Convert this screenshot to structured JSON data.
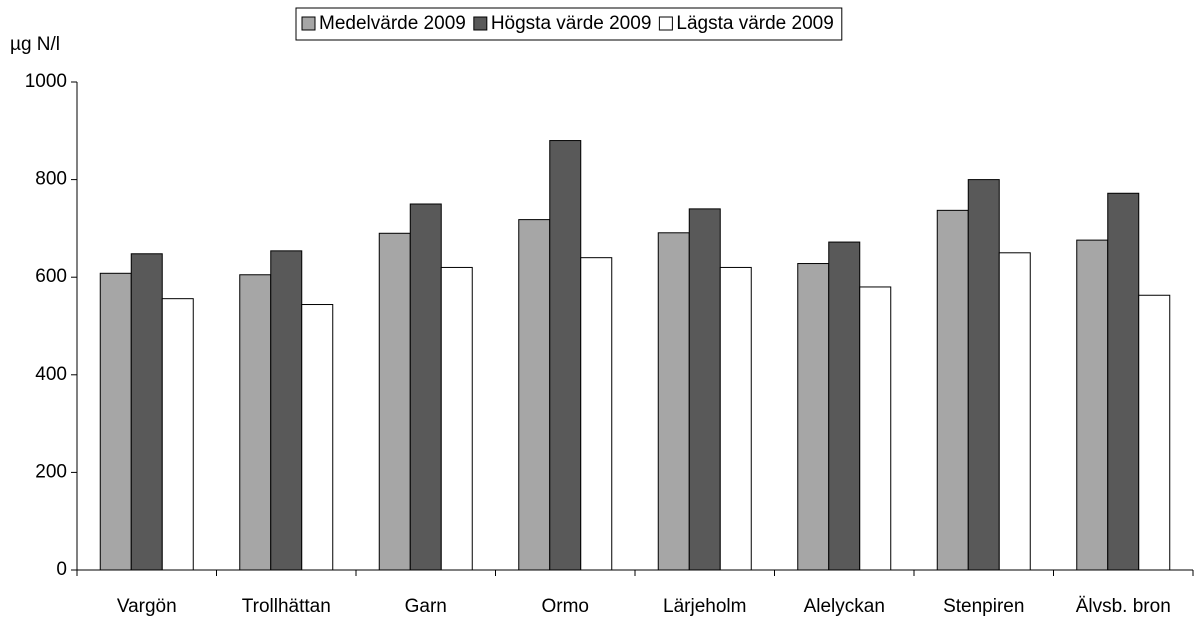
{
  "chart_data": {
    "type": "bar",
    "y_label": "µg N/l",
    "categories": [
      "Vargön",
      "Trollhättan",
      "Garn",
      "Ormo",
      "Lärjeholm",
      "Alelyckan",
      "Stenpiren",
      "Älvsb. bron"
    ],
    "series": [
      {
        "name": "Medelvärde 2009",
        "color": "#a6a6a6",
        "values": [
          608,
          605,
          690,
          718,
          691,
          628,
          737,
          676
        ]
      },
      {
        "name": "Högsta värde 2009",
        "color": "#595959",
        "values": [
          648,
          654,
          750,
          880,
          740,
          672,
          800,
          772
        ]
      },
      {
        "name": "Lägsta värde 2009",
        "color": "#ffffff",
        "values": [
          556,
          544,
          620,
          640,
          620,
          580,
          650,
          563
        ]
      }
    ],
    "ylim": [
      0,
      1000
    ],
    "yticks": [
      0,
      200,
      400,
      600,
      800,
      1000
    ],
    "legend": "top"
  }
}
